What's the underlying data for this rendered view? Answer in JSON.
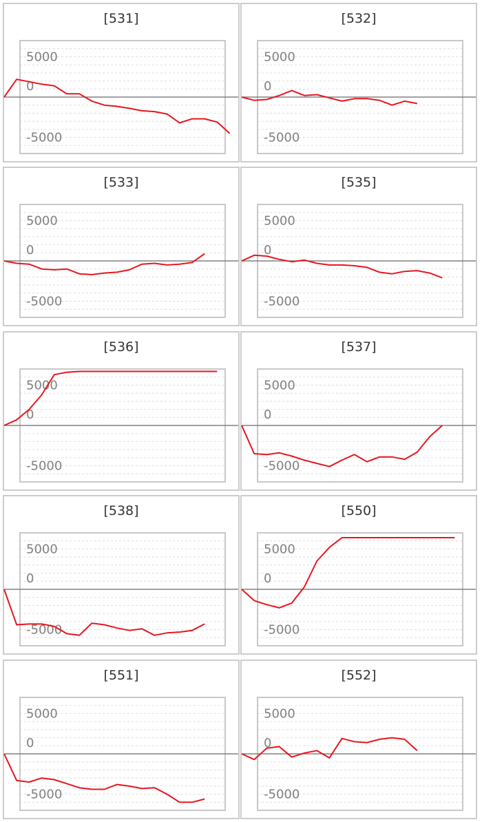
{
  "chart_data": [
    {
      "type": "line",
      "title": "[531]",
      "ylim": [
        -7000,
        7000
      ],
      "yticks": [
        5000,
        0,
        -5000
      ],
      "series": [
        {
          "values": [
            0,
            2200,
            1900,
            1600,
            1400,
            400,
            400,
            -500,
            -1000,
            -1150,
            -1400,
            -1700,
            -1800,
            -2100,
            -3200,
            -2700,
            -2700,
            -3100,
            -4500
          ]
        }
      ]
    },
    {
      "type": "line",
      "title": "[532]",
      "ylim": [
        -7000,
        7000
      ],
      "yticks": [
        5000,
        0,
        -5000
      ],
      "series": [
        {
          "values": [
            0,
            -400,
            -300,
            200,
            800,
            200,
            300,
            -100,
            -500,
            -200,
            -200,
            -400,
            -1000,
            -500,
            -800
          ]
        }
      ]
    },
    {
      "type": "line",
      "title": "[533]",
      "ylim": [
        -7000,
        7000
      ],
      "yticks": [
        5000,
        0,
        -5000
      ],
      "series": [
        {
          "values": [
            0,
            -300,
            -400,
            -1000,
            -1100,
            -1000,
            -1600,
            -1700,
            -1500,
            -1400,
            -1100,
            -400,
            -300,
            -500,
            -400,
            -200,
            900
          ]
        }
      ]
    },
    {
      "type": "line",
      "title": "[535]",
      "ylim": [
        -7000,
        7000
      ],
      "yticks": [
        5000,
        0,
        -5000
      ],
      "series": [
        {
          "values": [
            0,
            700,
            600,
            200,
            -100,
            100,
            -300,
            -500,
            -500,
            -600,
            -800,
            -1400,
            -1600,
            -1300,
            -1200,
            -1500,
            -2100
          ]
        }
      ]
    },
    {
      "type": "line",
      "title": "[536]",
      "ylim": [
        -7000,
        7000
      ],
      "yticks": [
        5000,
        0,
        -5000
      ],
      "series": [
        {
          "values": [
            0,
            700,
            2000,
            3800,
            6300,
            6600,
            6700,
            6700,
            6700,
            6700,
            6700,
            6700,
            6700,
            6700,
            6700,
            6700,
            6700,
            6700
          ]
        }
      ]
    },
    {
      "type": "line",
      "title": "[537]",
      "ylim": [
        -7000,
        7000
      ],
      "yticks": [
        5000,
        0,
        -5000
      ],
      "series": [
        {
          "values": [
            0,
            -3500,
            -3600,
            -3400,
            -3800,
            -4300,
            -4700,
            -5100,
            -4300,
            -3600,
            -4500,
            -3900,
            -3900,
            -4200,
            -3300,
            -1400,
            0
          ]
        }
      ]
    },
    {
      "type": "line",
      "title": "[538]",
      "ylim": [
        -7000,
        7000
      ],
      "yticks": [
        5000,
        0,
        -5000
      ],
      "series": [
        {
          "values": [
            0,
            -4400,
            -4300,
            -4300,
            -4600,
            -5500,
            -5700,
            -4200,
            -4400,
            -4800,
            -5100,
            -4900,
            -5700,
            -5400,
            -5300,
            -5100,
            -4300
          ]
        }
      ]
    },
    {
      "type": "line",
      "title": "[550]",
      "ylim": [
        -7000,
        7000
      ],
      "yticks": [
        5000,
        0,
        -5000
      ],
      "series": [
        {
          "values": [
            0,
            -1400,
            -1900,
            -2300,
            -1700,
            300,
            3500,
            5200,
            6400,
            6400,
            6400,
            6400,
            6400,
            6400,
            6400,
            6400,
            6400,
            6400
          ]
        }
      ]
    },
    {
      "type": "line",
      "title": "[551]",
      "ylim": [
        -7000,
        7000
      ],
      "yticks": [
        5000,
        0,
        -5000
      ],
      "series": [
        {
          "values": [
            0,
            -3300,
            -3500,
            -3000,
            -3200,
            -3700,
            -4200,
            -4400,
            -4400,
            -3800,
            -4000,
            -4300,
            -4200,
            -5000,
            -6000,
            -6000,
            -5600
          ]
        }
      ]
    },
    {
      "type": "line",
      "title": "[552]",
      "ylim": [
        -7000,
        7000
      ],
      "yticks": [
        5000,
        0,
        -5000
      ],
      "series": [
        {
          "values": [
            0,
            -700,
            700,
            900,
            -400,
            100,
            400,
            -500,
            1900,
            1500,
            1400,
            1800,
            2000,
            1800,
            400
          ]
        }
      ]
    }
  ],
  "colors": {
    "line": "#e8141c",
    "zero_line": "#808080",
    "grid": "#dddddd",
    "frame": "#c8c8c8",
    "ticks": "#808080"
  }
}
